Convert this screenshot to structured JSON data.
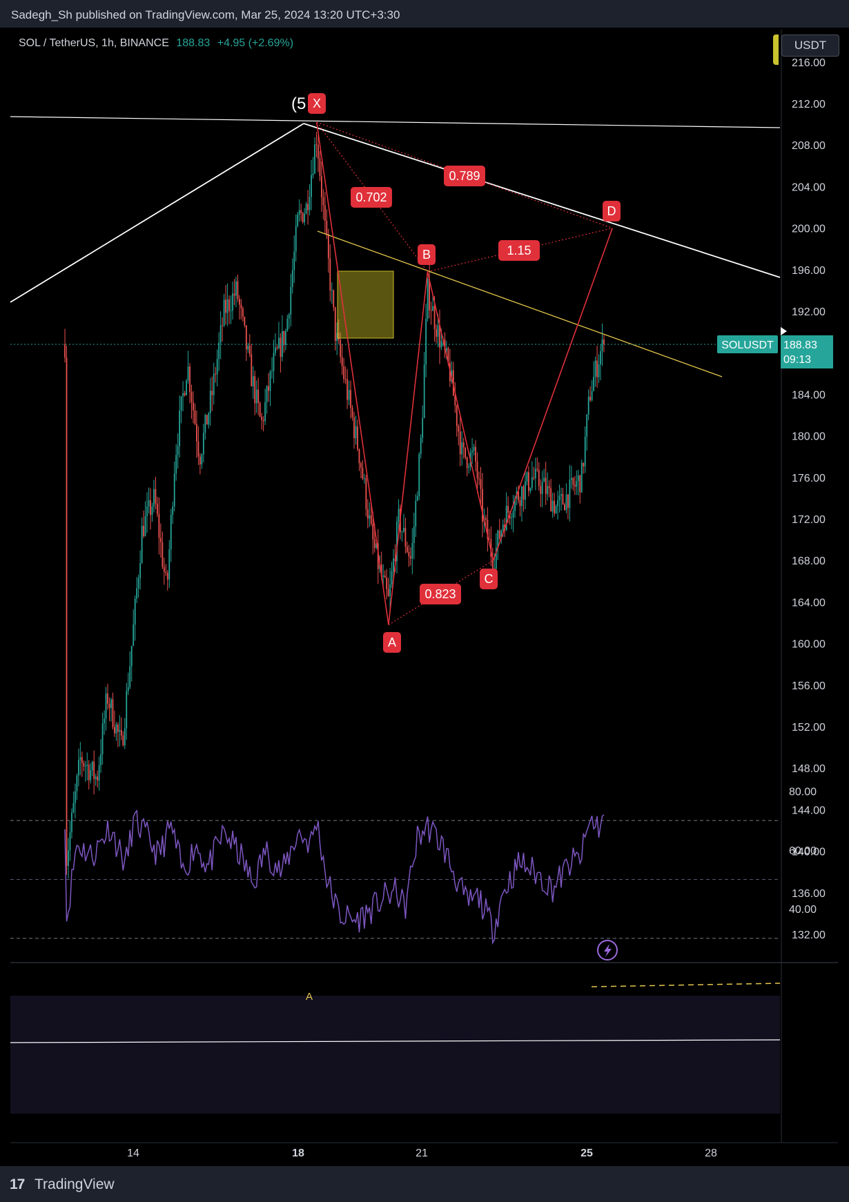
{
  "header": {
    "text": "Sadegh_Sh published on TradingView.com, Mar 25, 2024 13:20 UTC+3:30"
  },
  "legend": {
    "symbol": "SOL / TetherUS, 1h, BINANCE",
    "price": "188.83",
    "change": "+4.95 (+2.69%)"
  },
  "currency_button": "USDT",
  "price_badge": {
    "symbol": "SOLUSDT",
    "price": "188.83",
    "countdown": "09:13"
  },
  "footer": {
    "brand": "TradingView",
    "logo_glyph": "17"
  },
  "colors": {
    "up": "#26a69a",
    "down": "#ef5350",
    "harmonic": "#e0303a",
    "rsi": "#7e57c2",
    "trendline": "#e6c84d"
  },
  "chart_data": {
    "type": "candlestick",
    "price_axis": {
      "ticks": [
        "212.00",
        "208.00",
        "204.00",
        "200.00",
        "196.00",
        "192.00",
        "188.00",
        "184.00",
        "180.00",
        "176.00",
        "172.00",
        "168.00",
        "164.00",
        "160.00",
        "156.00",
        "152.00",
        "148.00",
        "144.00",
        "140.00",
        "136.00",
        "132.00"
      ],
      "range": [
        130,
        216
      ]
    },
    "time_axis": {
      "ticks": [
        "14",
        "18",
        "21",
        "25",
        "28"
      ]
    },
    "last_price": 188.83,
    "harmonic_pattern": {
      "points": [
        {
          "label": "X",
          "day": 18.45,
          "price": 210.2
        },
        {
          "label": "A",
          "day": 20.2,
          "price": 161.8
        },
        {
          "label": "B",
          "day": 21.15,
          "price": 195.8
        },
        {
          "label": "C",
          "day": 22.75,
          "price": 168.0
        },
        {
          "label": "D",
          "day": 25.65,
          "price": 200.0
        }
      ],
      "ratios": [
        "0.702",
        "0.823",
        "1.15",
        "0.789"
      ]
    },
    "wave_label": "(5",
    "rsi": {
      "ticks": [
        "80.00",
        "60.00",
        "40.00"
      ],
      "upper": 70,
      "lower": 30,
      "mid": 50,
      "peak_label": "A",
      "last": 72
    }
  }
}
